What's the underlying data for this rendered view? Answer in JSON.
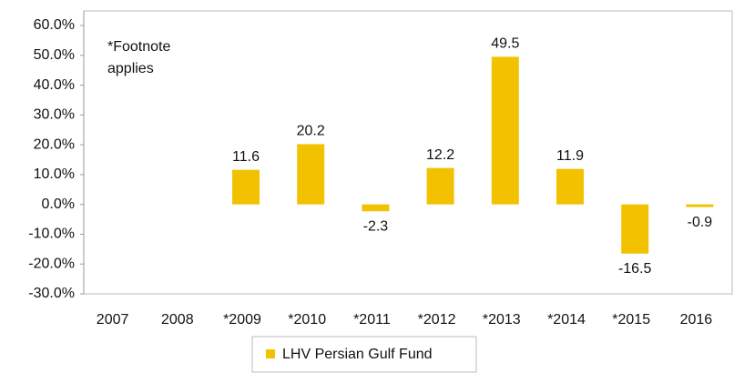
{
  "chart_data": {
    "type": "bar",
    "annotation": "*Footnote applies",
    "categories": [
      "2007",
      "2008",
      "*2009",
      "*2010",
      "*2011",
      "*2012",
      "*2013",
      "*2014",
      "*2015",
      "2016"
    ],
    "series": [
      {
        "name": "LHV Persian Gulf Fund",
        "color": "#f2c200",
        "values": [
          null,
          null,
          11.6,
          20.2,
          -2.3,
          12.2,
          49.5,
          11.9,
          -16.5,
          -0.9
        ]
      }
    ],
    "ylim": [
      -30,
      60
    ],
    "yticks": [
      {
        "value": -30,
        "label": "-30.0%"
      },
      {
        "value": -20,
        "label": "-20.0%"
      },
      {
        "value": -10,
        "label": "-10.0%"
      },
      {
        "value": 0,
        "label": "0.0%"
      },
      {
        "value": 10,
        "label": "10.0%"
      },
      {
        "value": 20,
        "label": "20.0%"
      },
      {
        "value": 30,
        "label": "30.0%"
      },
      {
        "value": 40,
        "label": "40.0%"
      },
      {
        "value": 50,
        "label": "50.0%"
      },
      {
        "value": 60,
        "label": "60.0%"
      }
    ],
    "grid": false,
    "legend": "bottom"
  }
}
